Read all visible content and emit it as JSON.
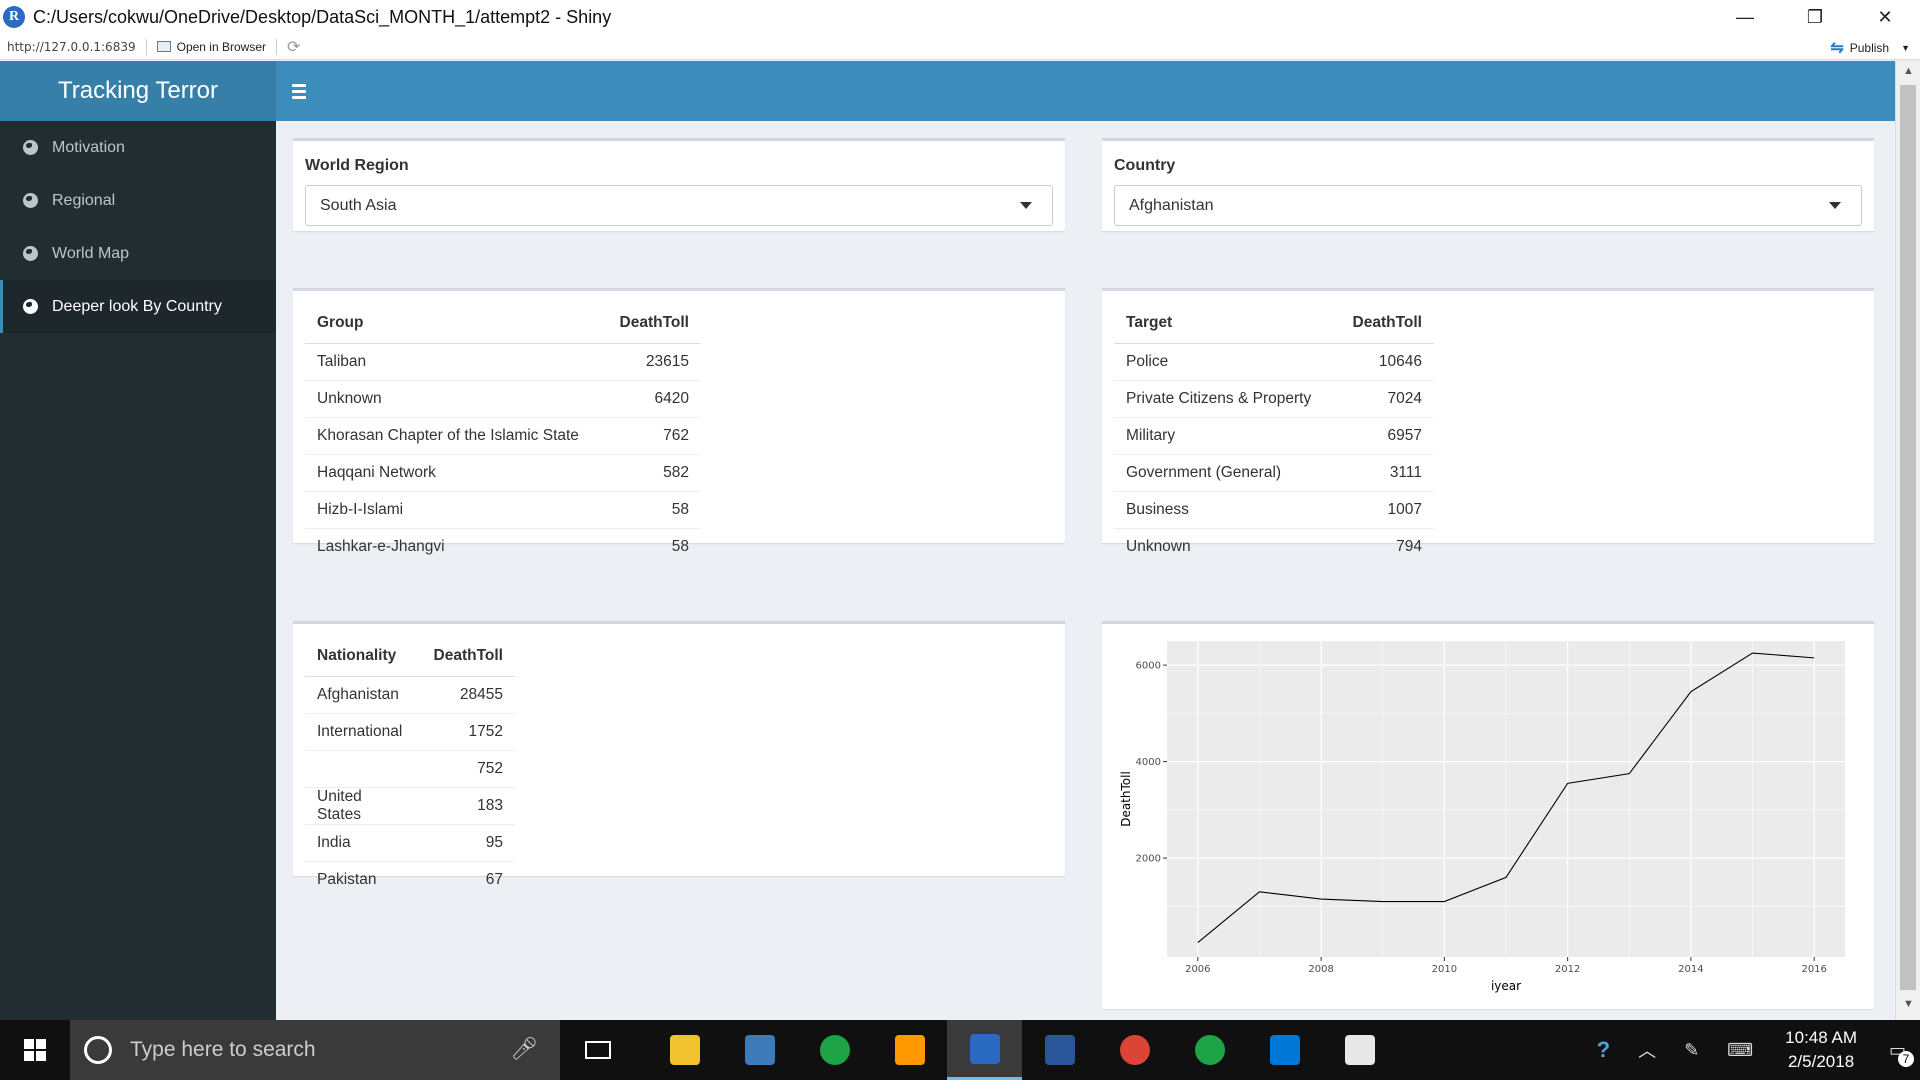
{
  "window": {
    "title": "C:/Users/cokwu/OneDrive/Desktop/DataSci_MONTH_1/attempt2 - Shiny",
    "minimize_glyph": "—",
    "maximize_glyph": "❐",
    "close_glyph": "✕"
  },
  "toolbar": {
    "url": "http://127.0.0.1:6839",
    "open_in_browser": "Open in Browser",
    "publish": "Publish"
  },
  "app": {
    "brand": "Tracking Terror",
    "sidebar": [
      {
        "label": "Motivation",
        "active": false
      },
      {
        "label": "Regional",
        "active": false
      },
      {
        "label": "World Map",
        "active": false
      },
      {
        "label": "Deeper look By Country",
        "active": true
      }
    ],
    "region_select": {
      "label": "World Region",
      "value": "South Asia"
    },
    "country_select": {
      "label": "Country",
      "value": "Afghanistan"
    },
    "group_table": {
      "headers": [
        "Group",
        "DeathToll"
      ],
      "rows": [
        [
          "Taliban",
          "23615"
        ],
        [
          "Unknown",
          "6420"
        ],
        [
          "Khorasan Chapter of the Islamic State",
          "762"
        ],
        [
          "Haqqani Network",
          "582"
        ],
        [
          "Hizb-I-Islami",
          "58"
        ],
        [
          "Lashkar-e-Jhangvi",
          "58"
        ]
      ]
    },
    "target_table": {
      "headers": [
        "Target",
        "DeathToll"
      ],
      "rows": [
        [
          "Police",
          "10646"
        ],
        [
          "Private Citizens & Property",
          "7024"
        ],
        [
          "Military",
          "6957"
        ],
        [
          "Government (General)",
          "3111"
        ],
        [
          "Business",
          "1007"
        ],
        [
          "Unknown",
          "794"
        ]
      ]
    },
    "nationality_table": {
      "headers": [
        "Nationality",
        "DeathToll"
      ],
      "rows": [
        [
          "Afghanistan",
          "28455"
        ],
        [
          "International",
          "1752"
        ],
        [
          "",
          "752"
        ],
        [
          "United States",
          "183"
        ],
        [
          "India",
          "95"
        ],
        [
          "Pakistan",
          "67"
        ]
      ]
    }
  },
  "chart_data": {
    "type": "line",
    "xlabel": "iyear",
    "ylabel": "DeathToll",
    "x": [
      2006,
      2007,
      2008,
      2009,
      2010,
      2011,
      2012,
      2013,
      2014,
      2015,
      2016
    ],
    "y": [
      250,
      1300,
      1150,
      1100,
      1100,
      1600,
      3550,
      3750,
      5450,
      6250,
      6150
    ],
    "x_ticks": [
      "2006",
      "2008",
      "2010",
      "2012",
      "2014",
      "2016"
    ],
    "y_ticks": [
      "2000",
      "4000",
      "6000"
    ],
    "xlim": [
      2005.5,
      2016.5
    ],
    "ylim": [
      -50,
      6500
    ],
    "grid": true,
    "colors": {
      "panel": "#ebebeb",
      "grid": "#ffffff",
      "line": "#000000"
    }
  },
  "taskbar": {
    "search_placeholder": "Type here to search",
    "time": "10:48 AM",
    "date": "2/5/2018",
    "notification_count": "7",
    "apps": [
      {
        "icon": "file-explorer-icon",
        "color": "#f2c12e"
      },
      {
        "icon": "python-file-icon",
        "color": "#3d7ab8"
      },
      {
        "icon": "spinner-app-icon",
        "color": "#1ea446"
      },
      {
        "icon": "sublime-text-icon",
        "color": "#ff9800"
      },
      {
        "icon": "rstudio-icon",
        "color": "#2a6bc1"
      },
      {
        "icon": "word-icon",
        "color": "#2b579a"
      },
      {
        "icon": "chrome-icon",
        "color": "#db4437"
      },
      {
        "icon": "spinner-app-2-icon",
        "color": "#1ea446"
      },
      {
        "icon": "edge-icon",
        "color": "#0078d7"
      },
      {
        "icon": "paint-icon",
        "color": "#e8e8e8"
      }
    ]
  }
}
